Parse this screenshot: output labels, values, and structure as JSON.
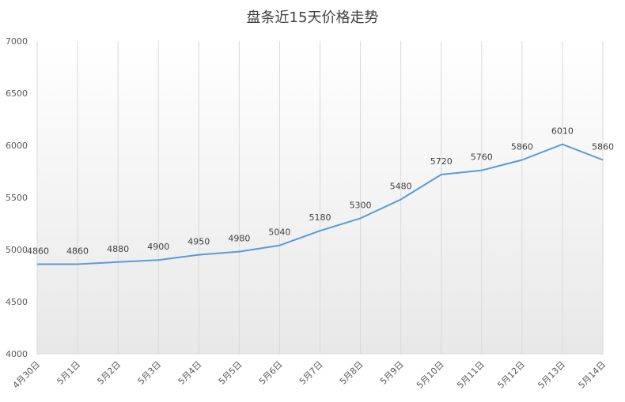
{
  "chart_data": {
    "type": "area",
    "title": "盘条近15天价格走势",
    "categories": [
      "4月30日",
      "5月1日",
      "5月2日",
      "5月3日",
      "5月4日",
      "5月5日",
      "5月6日",
      "5月7日",
      "5月8日",
      "5月9日",
      "5月10日",
      "5月11日",
      "5月12日",
      "5月13日",
      "5月14日"
    ],
    "series": [
      {
        "values": [
          4860,
          4860,
          4880,
          4900,
          4950,
          4980,
          5040,
          5180,
          5300,
          5480,
          5720,
          5760,
          5860,
          6010,
          5860
        ]
      }
    ],
    "ylim": [
      4000,
      7000
    ],
    "yticks": [
      4000,
      4500,
      5000,
      5500,
      6000,
      6500,
      7000
    ],
    "grid": "vertical",
    "data_labels": true,
    "legend": "none",
    "colors": {
      "line": "#5B9BD5",
      "grid": "#D9D9D9",
      "fill_top": "#FFFFFF",
      "fill_bottom": "#E8E8E8"
    }
  }
}
